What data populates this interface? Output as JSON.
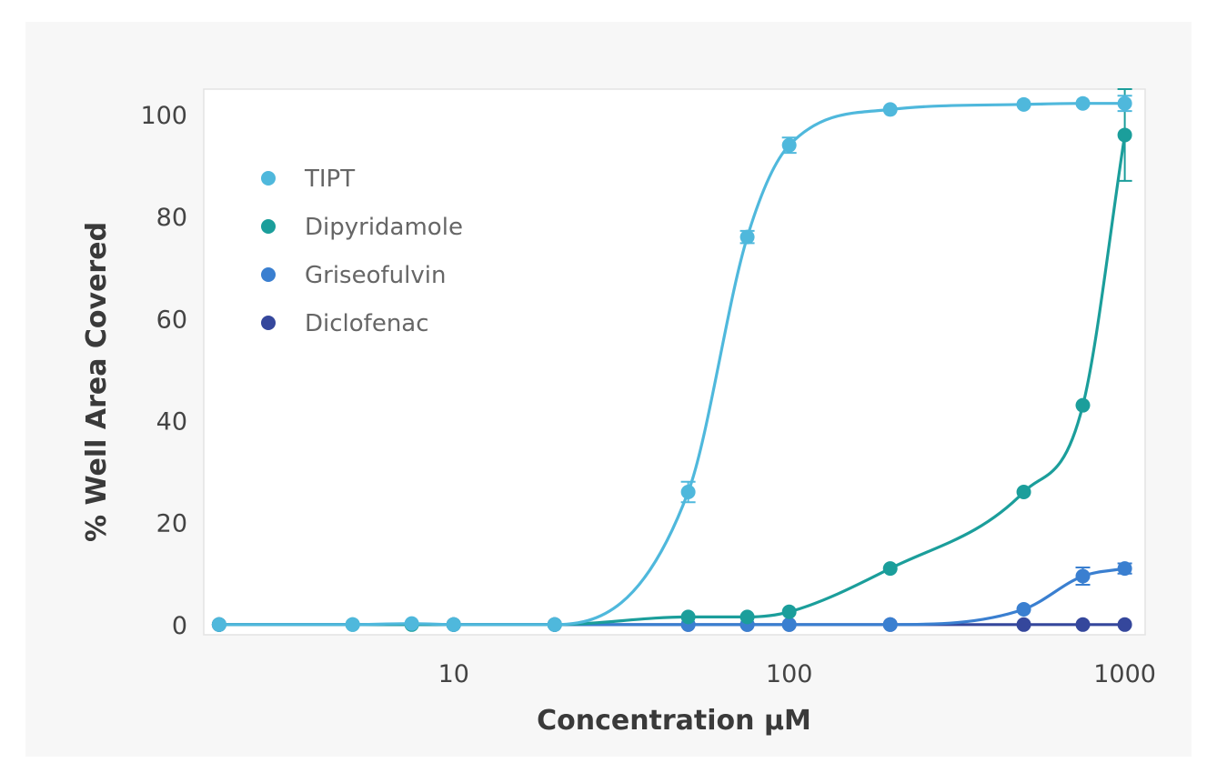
{
  "chart_data": {
    "type": "scatter",
    "title": "",
    "xlabel": "Concentration μM",
    "ylabel": "% Well Area Covered",
    "x_scale": "log",
    "xlim": [
      1.8,
      1150
    ],
    "ylim": [
      -2,
      105
    ],
    "x_ticks": [
      10,
      100,
      1000
    ],
    "x_tick_labels": [
      "10",
      "100",
      "1000"
    ],
    "y_ticks": [
      0,
      20,
      40,
      60,
      80,
      100
    ],
    "y_tick_labels": [
      "0",
      "20",
      "40",
      "60",
      "80",
      "100"
    ],
    "grid": false,
    "legend_position": "top-left",
    "series": [
      {
        "name": "TIPT",
        "color": "#4fb8dc",
        "x": [
          2,
          5,
          7.5,
          10,
          20,
          50,
          75,
          100,
          200,
          500,
          750,
          1000
        ],
        "y": [
          0,
          0,
          0.2,
          0,
          0,
          26,
          76,
          94,
          101,
          102,
          102.2,
          102.2
        ],
        "error": [
          0,
          0,
          0,
          0,
          0,
          2,
          1.2,
          1.5,
          0,
          0,
          0,
          1.5
        ]
      },
      {
        "name": "Dipyridamole",
        "color": "#1b9e9b",
        "x": [
          2,
          5,
          7.5,
          10,
          20,
          50,
          75,
          100,
          200,
          500,
          750,
          1000
        ],
        "y": [
          0,
          0,
          0,
          0,
          0,
          1.5,
          1.5,
          2.5,
          11,
          26,
          43,
          96
        ],
        "error": [
          0,
          0,
          0,
          0,
          0,
          0,
          0,
          0,
          0,
          0,
          0,
          9
        ]
      },
      {
        "name": "Griseofulvin",
        "color": "#3a7fd0",
        "x": [
          2,
          10,
          20,
          50,
          75,
          100,
          200,
          500,
          750,
          1000
        ],
        "y": [
          0,
          0,
          0,
          0,
          0,
          0,
          0,
          3,
          9.5,
          11
        ],
        "error": [
          0,
          0,
          0,
          0,
          0,
          0,
          0,
          0,
          1.7,
          1
        ]
      },
      {
        "name": "Diclofenac",
        "color": "#35479c",
        "x": [
          2,
          10,
          20,
          50,
          75,
          100,
          200,
          500,
          750,
          1000
        ],
        "y": [
          0,
          0,
          0,
          0,
          0,
          0,
          0,
          0,
          0,
          0
        ],
        "error": [
          0,
          0,
          0,
          0,
          0,
          0,
          0,
          0,
          0,
          0
        ]
      }
    ]
  }
}
